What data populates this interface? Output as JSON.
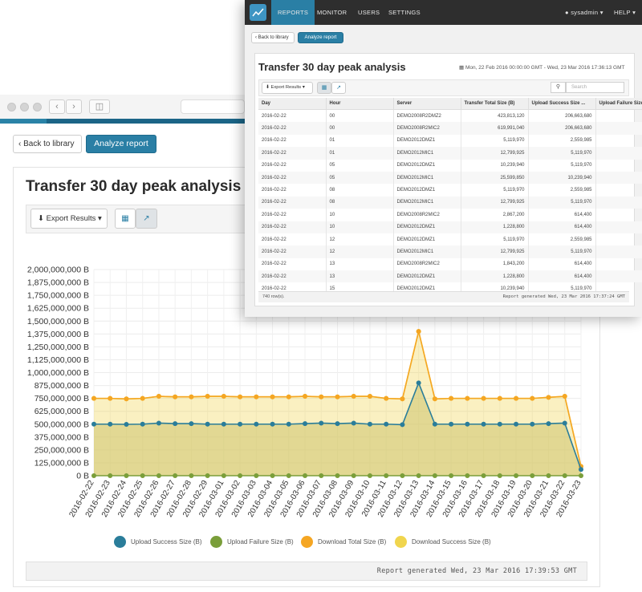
{
  "colors": {
    "accent": "#2a7fa5",
    "upload_success": "#2a7d9a",
    "upload_failure": "#7a9e3a",
    "download_total": "#f5a623",
    "download_success": "#f0d54e",
    "nav_dark": "#2e2e2e"
  },
  "back": {
    "back_label": "Back to library",
    "analyze_label": "Analyze report",
    "title": "Transfer 30 day peak analysis",
    "export_label": "Export Results",
    "footer": "Report generated Wed, 23 Mar 2016 17:39:53 GMT"
  },
  "front": {
    "nav": {
      "reports": "REPORTS",
      "monitor": "MONITOR",
      "users": "USERS",
      "settings": "SETTINGS",
      "user": "sysadmin",
      "help": "HELP"
    },
    "back_label": "Back to library",
    "analyze_label": "Analyze report",
    "title": "Transfer 30 day peak analysis",
    "date_range": "Mon, 22 Feb 2016 00:00:00 GMT - Wed, 23 Mar 2016 17:36:13 GMT",
    "export_label": "Export Results",
    "search_placeholder": "Search",
    "columns": [
      "Day",
      "Hour",
      "Server",
      "Transfer Total Size (B)",
      "Upload Success Size ...",
      "Upload Failure Size ..."
    ],
    "rows": [
      [
        "2016-02-22",
        "00",
        "DEMO2008R2DMZ2",
        "423,813,120",
        "206,663,680",
        ""
      ],
      [
        "2016-02-22",
        "00",
        "DEMO2008R2MIC2",
        "619,991,040",
        "206,663,680",
        ""
      ],
      [
        "2016-02-22",
        "01",
        "DEMO2012DMZ1",
        "5,119,970",
        "2,559,985",
        ""
      ],
      [
        "2016-02-22",
        "01",
        "DEMO2012MIC1",
        "12,799,925",
        "5,119,970",
        ""
      ],
      [
        "2016-02-22",
        "05",
        "DEMO2012DMZ1",
        "10,239,940",
        "5,119,970",
        ""
      ],
      [
        "2016-02-22",
        "05",
        "DEMO2012MIC1",
        "25,599,850",
        "10,239,940",
        ""
      ],
      [
        "2016-02-22",
        "08",
        "DEMO2012DMZ1",
        "5,119,970",
        "2,559,985",
        ""
      ],
      [
        "2016-02-22",
        "08",
        "DEMO2012MIC1",
        "12,799,925",
        "5,119,970",
        ""
      ],
      [
        "2016-02-22",
        "10",
        "DEMO2008R2MIC2",
        "2,867,200",
        "614,400",
        ""
      ],
      [
        "2016-02-22",
        "10",
        "DEMO2012DMZ1",
        "1,228,800",
        "614,400",
        ""
      ],
      [
        "2016-02-22",
        "12",
        "DEMO2012DMZ1",
        "5,119,970",
        "2,559,985",
        ""
      ],
      [
        "2016-02-22",
        "12",
        "DEMO2012MIC1",
        "12,799,925",
        "5,119,970",
        ""
      ],
      [
        "2016-02-22",
        "13",
        "DEMO2008R2MIC2",
        "1,843,200",
        "614,400",
        ""
      ],
      [
        "2016-02-22",
        "13",
        "DEMO2012DMZ1",
        "1,228,800",
        "614,400",
        ""
      ],
      [
        "2016-02-22",
        "15",
        "DEMO2012DMZ1",
        "10,239,940",
        "5,119,970",
        ""
      ]
    ],
    "row_count": "740 row(s).",
    "footer": "Report generated Wed, 23 Mar 2016 17:37:24 GMT"
  },
  "chart_data": {
    "type": "area",
    "yticks": [
      "0 B",
      "125,000,000 B",
      "250,000,000 B",
      "375,000,000 B",
      "500,000,000 B",
      "625,000,000 B",
      "750,000,000 B",
      "875,000,000 B",
      "1,000,000,000 B",
      "1,125,000,000 B",
      "1,250,000,000 B",
      "1,375,000,000 B",
      "1,500,000,000 B",
      "1,625,000,000 B",
      "1,750,000,000 B",
      "1,875,000,000 B",
      "2,000,000,000 B"
    ],
    "ylim": [
      0,
      2000000000
    ],
    "x": [
      "2016-02-22",
      "2016-02-23",
      "2016-02-24",
      "2016-02-25",
      "2016-02-26",
      "2016-02-27",
      "2016-02-28",
      "2016-02-29",
      "2016-03-01",
      "2016-03-02",
      "2016-03-03",
      "2016-03-04",
      "2016-03-05",
      "2016-03-06",
      "2016-03-07",
      "2016-03-08",
      "2016-03-09",
      "2016-03-10",
      "2016-03-11",
      "2016-03-12",
      "2016-03-13",
      "2016-03-14",
      "2016-03-15",
      "2016-03-16",
      "2016-03-17",
      "2016-03-18",
      "2016-03-19",
      "2016-03-20",
      "2016-03-21",
      "2016-03-22",
      "2016-03-23"
    ],
    "series": [
      {
        "name": "Upload Success Size (B)",
        "values": [
          500000000,
          500000000,
          498000000,
          500000000,
          510000000,
          505000000,
          505000000,
          500000000,
          500000000,
          500000000,
          500000000,
          500000000,
          500000000,
          505000000,
          510000000,
          505000000,
          510000000,
          500000000,
          500000000,
          495000000,
          900000000,
          500000000,
          500000000,
          500000000,
          500000000,
          500000000,
          500000000,
          500000000,
          505000000,
          510000000,
          60000000
        ]
      },
      {
        "name": "Upload Failure Size (B)",
        "values": [
          0,
          0,
          0,
          0,
          0,
          0,
          0,
          0,
          0,
          0,
          0,
          0,
          0,
          0,
          0,
          0,
          0,
          0,
          0,
          0,
          0,
          0,
          0,
          0,
          0,
          0,
          0,
          0,
          0,
          0,
          0
        ]
      },
      {
        "name": "Download Total Size (B)",
        "values": [
          750000000,
          750000000,
          745000000,
          750000000,
          770000000,
          765000000,
          765000000,
          770000000,
          770000000,
          765000000,
          765000000,
          765000000,
          765000000,
          770000000,
          765000000,
          765000000,
          770000000,
          770000000,
          750000000,
          745000000,
          1400000000,
          745000000,
          750000000,
          750000000,
          750000000,
          750000000,
          750000000,
          750000000,
          760000000,
          770000000,
          90000000
        ]
      },
      {
        "name": "Download Success Size (B)",
        "values": [
          750000000,
          750000000,
          745000000,
          750000000,
          770000000,
          765000000,
          765000000,
          770000000,
          770000000,
          765000000,
          765000000,
          765000000,
          765000000,
          770000000,
          765000000,
          765000000,
          770000000,
          770000000,
          750000000,
          745000000,
          1400000000,
          745000000,
          750000000,
          750000000,
          750000000,
          750000000,
          750000000,
          750000000,
          760000000,
          770000000,
          90000000
        ]
      }
    ],
    "legend_position": "bottom",
    "grid": true
  }
}
